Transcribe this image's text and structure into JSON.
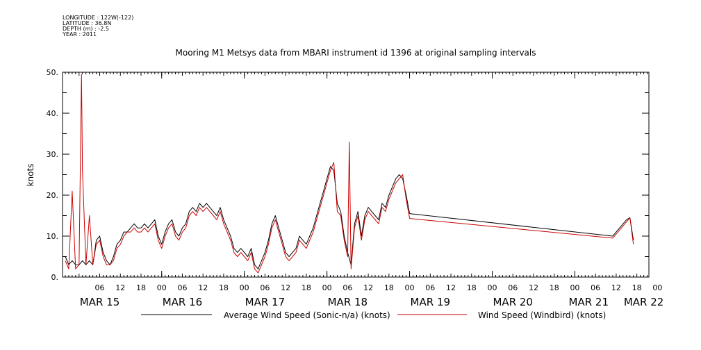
{
  "metadata": {
    "longitude": "LONGITUDE : 122W(-122)",
    "latitude": "LATITUDE : 36.8N",
    "depth": "DEPTH (m) : -2.5",
    "year": "YEAR : 2011"
  },
  "chart_data": {
    "type": "line",
    "title": "Mooring M1 Metsys data from MBARI instrument id 1396 at original sampling intervals",
    "xlabel": "",
    "ylabel": "knots",
    "ylim": [
      0,
      50
    ],
    "xlim_hours": [
      0,
      168
    ],
    "x_axis_start": "2011-03-15 00:00",
    "y_ticks": [
      "0.",
      "10.",
      "20.",
      "30.",
      "40.",
      "50."
    ],
    "hour_tick_labels": [
      "06",
      "12",
      "18",
      "00",
      "06",
      "12",
      "18",
      "00",
      "06",
      "12",
      "18",
      "00",
      "06",
      "12",
      "18",
      "00",
      "06",
      "12",
      "18",
      "00",
      "06",
      "12",
      "18",
      "00",
      "06",
      "12",
      "18",
      "00"
    ],
    "day_labels": [
      "MAR 15",
      "MAR 16",
      "MAR 17",
      "MAR 18",
      "MAR 19",
      "MAR 20",
      "MAR 21",
      "MAR 22"
    ],
    "grid": false,
    "legend_position": "bottom",
    "series": [
      {
        "name": "Average Wind Speed (Sonic-n/a) (knots)",
        "color": "#000000",
        "points": [
          [
            -4,
            5
          ],
          [
            -3,
            3
          ],
          [
            -2,
            4
          ],
          [
            -1,
            3
          ],
          [
            0,
            3
          ],
          [
            1,
            4
          ],
          [
            2,
            3
          ],
          [
            3,
            4
          ],
          [
            4,
            3
          ],
          [
            5,
            9
          ],
          [
            6,
            10
          ],
          [
            7,
            6
          ],
          [
            8,
            4
          ],
          [
            9,
            3
          ],
          [
            10,
            5
          ],
          [
            11,
            8
          ],
          [
            12,
            9
          ],
          [
            13,
            11
          ],
          [
            14,
            11
          ],
          [
            15,
            12
          ],
          [
            16,
            13
          ],
          [
            17,
            12
          ],
          [
            18,
            12
          ],
          [
            19,
            13
          ],
          [
            20,
            12
          ],
          [
            21,
            13
          ],
          [
            22,
            14
          ],
          [
            23,
            10
          ],
          [
            24,
            8
          ],
          [
            25,
            11
          ],
          [
            26,
            13
          ],
          [
            27,
            14
          ],
          [
            28,
            11
          ],
          [
            29,
            10
          ],
          [
            30,
            12
          ],
          [
            31,
            13
          ],
          [
            32,
            16
          ],
          [
            33,
            17
          ],
          [
            34,
            16
          ],
          [
            35,
            18
          ],
          [
            36,
            17
          ],
          [
            37,
            18
          ],
          [
            38,
            17
          ],
          [
            39,
            16
          ],
          [
            40,
            15
          ],
          [
            41,
            17
          ],
          [
            42,
            14
          ],
          [
            43,
            12
          ],
          [
            44,
            10
          ],
          [
            45,
            7
          ],
          [
            46,
            6
          ],
          [
            47,
            7
          ],
          [
            48,
            6
          ],
          [
            49,
            5
          ],
          [
            50,
            7
          ],
          [
            51,
            3
          ],
          [
            52,
            2
          ],
          [
            53,
            4
          ],
          [
            54,
            6
          ],
          [
            55,
            9
          ],
          [
            56,
            13
          ],
          [
            57,
            15
          ],
          [
            58,
            12
          ],
          [
            59,
            9
          ],
          [
            60,
            6
          ],
          [
            61,
            5
          ],
          [
            62,
            6
          ],
          [
            63,
            7
          ],
          [
            64,
            10
          ],
          [
            65,
            9
          ],
          [
            66,
            8
          ],
          [
            67,
            10
          ],
          [
            68,
            12
          ],
          [
            69,
            15
          ],
          [
            70,
            18
          ],
          [
            71,
            21
          ],
          [
            72,
            24
          ],
          [
            73,
            27
          ],
          [
            74,
            26
          ],
          [
            75,
            18
          ],
          [
            76,
            16
          ],
          [
            77,
            10
          ],
          [
            78,
            6
          ],
          [
            79,
            3
          ],
          [
            80,
            13
          ],
          [
            81,
            16
          ],
          [
            82,
            10
          ],
          [
            83,
            15
          ],
          [
            84,
            17
          ],
          [
            85,
            16
          ],
          [
            86,
            15
          ],
          [
            87,
            14
          ],
          [
            88,
            18
          ],
          [
            89,
            17
          ],
          [
            90,
            20
          ],
          [
            91,
            22
          ],
          [
            92,
            24
          ],
          [
            93,
            25
          ],
          [
            94,
            24
          ],
          [
            95,
            20
          ],
          [
            96,
            15.5
          ],
          [
            155,
            10
          ],
          [
            156,
            11
          ],
          [
            157,
            12
          ],
          [
            158,
            13
          ],
          [
            159,
            14
          ],
          [
            160,
            14.5
          ],
          [
            161,
            9
          ]
        ]
      },
      {
        "name": "Wind Speed (Windbird) (knots)",
        "color": "#cc0000",
        "points": [
          [
            -4,
            4
          ],
          [
            -3,
            2
          ],
          [
            -2,
            21
          ],
          [
            -1,
            2
          ],
          [
            0,
            3
          ],
          [
            0.7,
            49.5
          ],
          [
            1,
            26
          ],
          [
            2,
            3
          ],
          [
            3,
            15
          ],
          [
            4,
            3
          ],
          [
            5,
            8
          ],
          [
            6,
            9
          ],
          [
            7,
            5
          ],
          [
            8,
            3
          ],
          [
            9,
            3
          ],
          [
            10,
            4
          ],
          [
            11,
            7
          ],
          [
            12,
            8
          ],
          [
            13,
            10
          ],
          [
            14,
            11
          ],
          [
            15,
            11
          ],
          [
            16,
            12
          ],
          [
            17,
            11
          ],
          [
            18,
            11
          ],
          [
            19,
            12
          ],
          [
            20,
            11
          ],
          [
            21,
            12
          ],
          [
            22,
            13
          ],
          [
            23,
            9
          ],
          [
            24,
            7
          ],
          [
            25,
            10
          ],
          [
            26,
            12
          ],
          [
            27,
            13
          ],
          [
            28,
            10
          ],
          [
            29,
            9
          ],
          [
            30,
            11
          ],
          [
            31,
            12
          ],
          [
            32,
            15
          ],
          [
            33,
            16
          ],
          [
            34,
            15
          ],
          [
            35,
            17
          ],
          [
            36,
            16
          ],
          [
            37,
            17
          ],
          [
            38,
            16
          ],
          [
            39,
            15
          ],
          [
            40,
            14
          ],
          [
            41,
            16
          ],
          [
            42,
            13
          ],
          [
            43,
            11
          ],
          [
            44,
            9
          ],
          [
            45,
            6
          ],
          [
            46,
            5
          ],
          [
            47,
            6
          ],
          [
            48,
            5
          ],
          [
            49,
            4
          ],
          [
            50,
            6
          ],
          [
            51,
            2
          ],
          [
            52,
            1
          ],
          [
            53,
            3
          ],
          [
            54,
            5
          ],
          [
            55,
            8
          ],
          [
            56,
            12
          ],
          [
            57,
            14
          ],
          [
            58,
            11
          ],
          [
            59,
            8
          ],
          [
            60,
            5
          ],
          [
            61,
            4
          ],
          [
            62,
            5
          ],
          [
            63,
            6
          ],
          [
            64,
            9
          ],
          [
            65,
            8
          ],
          [
            66,
            7
          ],
          [
            67,
            9
          ],
          [
            68,
            11
          ],
          [
            69,
            14
          ],
          [
            70,
            17
          ],
          [
            71,
            20
          ],
          [
            72,
            23
          ],
          [
            73,
            26
          ],
          [
            74,
            28
          ],
          [
            75,
            16
          ],
          [
            76,
            15
          ],
          [
            77,
            9
          ],
          [
            78,
            5
          ],
          [
            78.5,
            33
          ],
          [
            79,
            2
          ],
          [
            80,
            12
          ],
          [
            81,
            15
          ],
          [
            82,
            9
          ],
          [
            83,
            14
          ],
          [
            84,
            16
          ],
          [
            85,
            15
          ],
          [
            86,
            14
          ],
          [
            87,
            13
          ],
          [
            88,
            17
          ],
          [
            89,
            16
          ],
          [
            90,
            19
          ],
          [
            91,
            21
          ],
          [
            92,
            23
          ],
          [
            93,
            24
          ],
          [
            94,
            25
          ],
          [
            95,
            19
          ],
          [
            96,
            14.3
          ],
          [
            155,
            9.5
          ],
          [
            156,
            10.5
          ],
          [
            157,
            11.5
          ],
          [
            158,
            12.5
          ],
          [
            159,
            13.5
          ],
          [
            160,
            14.5
          ],
          [
            161,
            8
          ]
        ]
      }
    ]
  }
}
